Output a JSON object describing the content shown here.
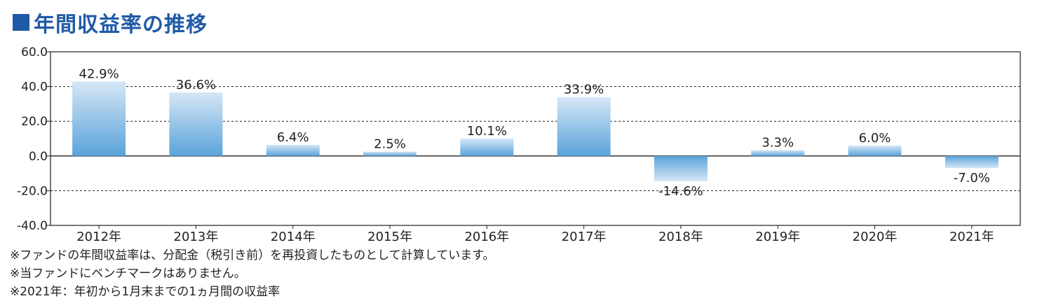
{
  "title": "■年間収益率の推移",
  "title_text": "年間収益率の推移",
  "colors": {
    "title": "#1f5aa6",
    "bar_top": "#d6e7f6",
    "bar_bottom": "#5aa3da",
    "axis": "#231f20",
    "grid": "#231f20"
  },
  "chart_data": {
    "type": "bar",
    "categories": [
      "2012年",
      "2013年",
      "2014年",
      "2015年",
      "2016年",
      "2017年",
      "2018年",
      "2019年",
      "2020年",
      "2021年"
    ],
    "values": [
      42.9,
      36.6,
      6.4,
      2.5,
      10.1,
      33.9,
      -14.6,
      3.3,
      6.0,
      -7.0
    ],
    "data_labels": [
      "42.9%",
      "36.6%",
      "6.4%",
      "2.5%",
      "10.1%",
      "33.9%",
      "-14.6%",
      "3.3%",
      "6.0%",
      "-7.0%"
    ],
    "yticks": [
      "60.0",
      "40.0",
      "20.0",
      "0.0",
      "-20.0",
      "-40.0"
    ],
    "ylim": [
      -40,
      60
    ],
    "grid": "dashed horizontal",
    "xlabel": "",
    "ylabel": ""
  },
  "notes": [
    "※ファンドの年間収益率は、分配金（税引き前）を再投資したものとして計算しています。",
    "※当ファンドにベンチマークはありません。",
    "※2021年：年初から1月末までの1ヵ月間の収益率"
  ]
}
